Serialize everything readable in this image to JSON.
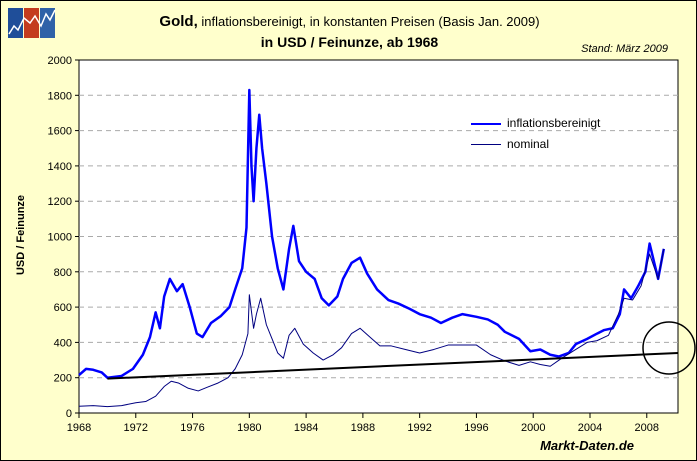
{
  "header": {
    "title_bold": "Gold,",
    "title_rest": " inflationsbereinigt, in konstanten Preisen (Basis Jan. 2009)",
    "subtitle": "in USD / Feinunze, ab 1968",
    "stand": "Stand: März 2009",
    "brand": "Markt-Daten.de"
  },
  "chart_data": {
    "type": "line",
    "ylabel": "USD / Feinunze",
    "xlim": [
      1968,
      2010.2
    ],
    "ylim": [
      0,
      2000
    ],
    "xticks": [
      1968,
      1972,
      1976,
      1980,
      1984,
      1988,
      1992,
      1996,
      2000,
      2004,
      2008
    ],
    "yticks": [
      0,
      200,
      400,
      600,
      800,
      1000,
      1200,
      1400,
      1600,
      1800,
      2000
    ],
    "grid": "horizontal dashed",
    "legend": "top-right",
    "series": [
      {
        "name": "inflationsbereinigt",
        "color": "#0000ff",
        "x": [
          1968,
          1968.5,
          1969,
          1969.6,
          1970,
          1971,
          1971.8,
          1972.5,
          1973,
          1973.4,
          1973.7,
          1974,
          1974.4,
          1974.9,
          1975.3,
          1975.8,
          1976.3,
          1976.7,
          1977.3,
          1978,
          1978.6,
          1979,
          1979.5,
          1979.8,
          1980.0,
          1980.15,
          1980.3,
          1980.5,
          1980.7,
          1980.9,
          1981.2,
          1981.6,
          1982,
          1982.4,
          1982.8,
          1983.1,
          1983.5,
          1984,
          1984.6,
          1985.1,
          1985.6,
          1986.2,
          1986.6,
          1987.2,
          1987.8,
          1988.3,
          1989,
          1989.8,
          1990.5,
          1991.3,
          1992,
          1992.8,
          1993.5,
          1994.3,
          1995,
          1996,
          1996.8,
          1997.5,
          1998,
          1999,
          1999.8,
          2000.5,
          2001.2,
          2001.8,
          2002.5,
          2003,
          2003.8,
          2004.5,
          2005,
          2005.6,
          2006.1,
          2006.4,
          2006.9,
          2007.4,
          2007.9,
          2008.2,
          2008.5,
          2008.8,
          2009.2
        ],
        "values": [
          215,
          250,
          245,
          230,
          200,
          210,
          250,
          330,
          430,
          570,
          480,
          660,
          760,
          690,
          730,
          600,
          450,
          430,
          510,
          550,
          600,
          700,
          820,
          1050,
          1830,
          1400,
          1200,
          1500,
          1690,
          1500,
          1300,
          1000,
          820,
          700,
          930,
          1060,
          860,
          800,
          760,
          650,
          610,
          660,
          760,
          850,
          880,
          790,
          700,
          640,
          620,
          590,
          560,
          540,
          510,
          540,
          560,
          545,
          530,
          500,
          460,
          420,
          350,
          360,
          330,
          320,
          340,
          390,
          420,
          450,
          470,
          480,
          560,
          700,
          650,
          720,
          800,
          960,
          860,
          760,
          930
        ]
      },
      {
        "name": "nominal",
        "color": "#000080",
        "x": [
          1968,
          1969,
          1970,
          1971,
          1972,
          1972.7,
          1973.4,
          1974,
          1974.5,
          1975,
          1975.7,
          1976.4,
          1977,
          1977.8,
          1978.5,
          1979,
          1979.5,
          1979.9,
          1980.0,
          1980.3,
          1980.5,
          1980.8,
          1981.2,
          1981.6,
          1982,
          1982.4,
          1982.8,
          1983.2,
          1983.8,
          1984.5,
          1985.2,
          1985.9,
          1986.5,
          1987.2,
          1987.8,
          1988.5,
          1989.2,
          1990,
          1991,
          1992,
          1993,
          1994,
          1995,
          1996,
          1997,
          1998,
          1999,
          1999.8,
          2000.5,
          2001.2,
          2002,
          2003,
          2003.8,
          2004.5,
          2005.3,
          2006,
          2006.4,
          2007,
          2007.6,
          2008.2,
          2008.8,
          2009.2
        ],
        "values": [
          38,
          42,
          36,
          42,
          58,
          65,
          95,
          150,
          180,
          170,
          140,
          125,
          145,
          170,
          200,
          250,
          330,
          450,
          670,
          480,
          560,
          650,
          500,
          420,
          340,
          310,
          440,
          480,
          390,
          340,
          300,
          330,
          370,
          450,
          480,
          430,
          380,
          380,
          360,
          340,
          360,
          385,
          385,
          385,
          330,
          295,
          270,
          290,
          275,
          265,
          310,
          360,
          400,
          410,
          440,
          560,
          650,
          640,
          720,
          900,
          760,
          930
        ]
      },
      {
        "name": "",
        "color": "#000000",
        "x": [
          1970,
          2010.2
        ],
        "values": [
          195,
          340
        ]
      }
    ]
  }
}
